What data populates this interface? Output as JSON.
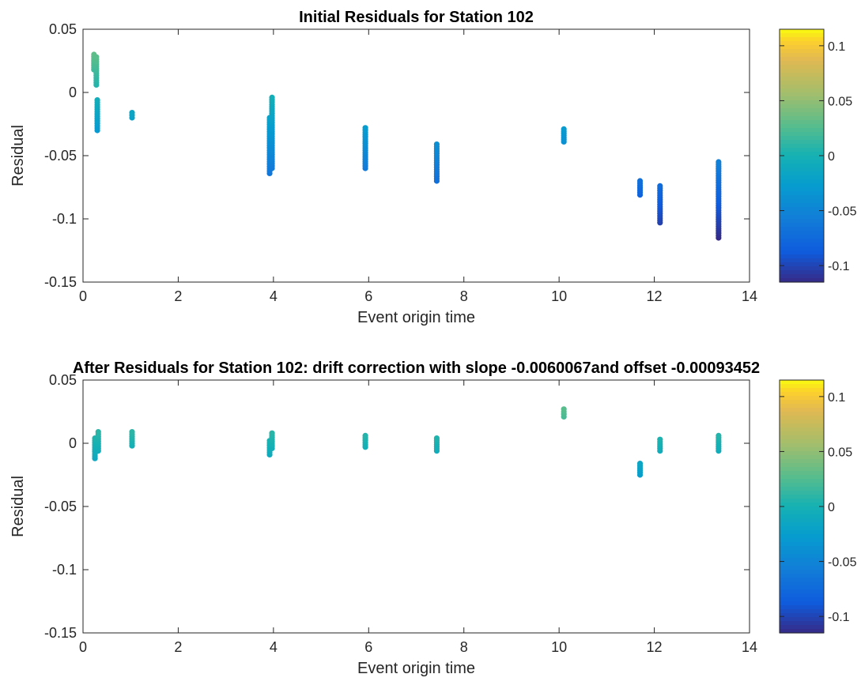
{
  "chart_data": [
    {
      "type": "scatter",
      "title": "Initial Residuals for Station 102",
      "xlabel": "Event origin time",
      "ylabel": "Residual",
      "xlim": [
        0,
        14
      ],
      "ylim": [
        -0.15,
        0.05
      ],
      "xticks": [
        "0",
        "2",
        "4",
        "6",
        "8",
        "10",
        "12",
        "14"
      ],
      "yticks": [
        "0.05",
        "0",
        "-0.05",
        "-0.1",
        "-0.15"
      ],
      "grid": false,
      "colormap": "parula",
      "clim": [
        -0.115,
        0.115
      ],
      "colorbar_ticks": [
        "0.1",
        "0.05",
        "0",
        "-0.05",
        "-0.1"
      ],
      "clusters": [
        {
          "x": 0.23,
          "y_min": 0.018,
          "y_max": 0.03
        },
        {
          "x": 0.28,
          "y_min": 0.006,
          "y_max": 0.028
        },
        {
          "x": 0.3,
          "y_min": -0.03,
          "y_max": -0.006
        },
        {
          "x": 1.03,
          "y_min": -0.02,
          "y_max": -0.016
        },
        {
          "x": 3.92,
          "y_min": -0.064,
          "y_max": -0.02
        },
        {
          "x": 3.97,
          "y_min": -0.06,
          "y_max": -0.004
        },
        {
          "x": 5.93,
          "y_min": -0.06,
          "y_max": -0.028
        },
        {
          "x": 7.43,
          "y_min": -0.07,
          "y_max": -0.041
        },
        {
          "x": 10.1,
          "y_min": -0.039,
          "y_max": -0.029
        },
        {
          "x": 11.7,
          "y_min": -0.081,
          "y_max": -0.07
        },
        {
          "x": 12.12,
          "y_min": -0.103,
          "y_max": -0.074
        },
        {
          "x": 13.35,
          "y_min": -0.115,
          "y_max": -0.055
        }
      ]
    },
    {
      "type": "scatter",
      "title": "After Residuals for Station 102: drift correction with slope -0.0060067and offset -0.00093452",
      "xlabel": "Event origin time",
      "ylabel": "Residual",
      "xlim": [
        0,
        14
      ],
      "ylim": [
        -0.15,
        0.05
      ],
      "xticks": [
        "0",
        "2",
        "4",
        "6",
        "8",
        "10",
        "12",
        "14"
      ],
      "yticks": [
        "0.05",
        "0",
        "-0.05",
        "-0.1",
        "-0.15"
      ],
      "grid": false,
      "colormap": "parula",
      "clim": [
        -0.115,
        0.115
      ],
      "colorbar_ticks": [
        "0.1",
        "0.05",
        "0",
        "-0.05",
        "-0.1"
      ],
      "clusters": [
        {
          "x": 0.25,
          "y_min": -0.012,
          "y_max": 0.004
        },
        {
          "x": 0.32,
          "y_min": -0.006,
          "y_max": 0.009
        },
        {
          "x": 1.03,
          "y_min": -0.002,
          "y_max": 0.009
        },
        {
          "x": 3.92,
          "y_min": -0.009,
          "y_max": 0.002
        },
        {
          "x": 3.97,
          "y_min": -0.004,
          "y_max": 0.008
        },
        {
          "x": 5.93,
          "y_min": -0.003,
          "y_max": 0.006
        },
        {
          "x": 7.43,
          "y_min": -0.006,
          "y_max": 0.004
        },
        {
          "x": 10.1,
          "y_min": 0.021,
          "y_max": 0.027
        },
        {
          "x": 11.7,
          "y_min": -0.025,
          "y_max": -0.016
        },
        {
          "x": 12.12,
          "y_min": -0.006,
          "y_max": 0.003
        },
        {
          "x": 13.35,
          "y_min": -0.006,
          "y_max": 0.006
        }
      ]
    }
  ]
}
